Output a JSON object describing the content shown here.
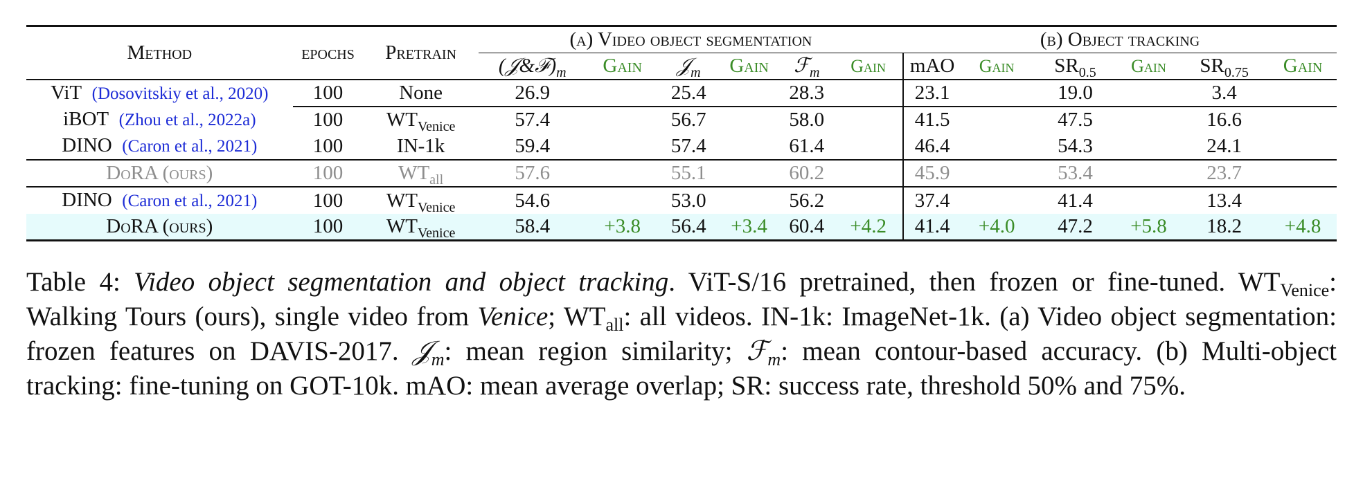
{
  "table": {
    "headers": {
      "method": "Method",
      "epochs": "epochs",
      "pretrain": "Pretrain",
      "group_a": "(a) Video object segmentation",
      "group_b": "(b) Object tracking",
      "jf": "(𝒥&ℱ)",
      "jf_sub": "m",
      "gain": "Gain",
      "j": "𝒥",
      "j_sub": "m",
      "f": "ℱ",
      "f_sub": "m",
      "mao": "mAO",
      "sr50": "SR",
      "sr50_sub": "0.5",
      "sr75": "SR",
      "sr75_sub": "0.75"
    },
    "rows": [
      {
        "method": "ViT",
        "cite_open": "(",
        "cite_author": "Dosovitskiy et al.",
        "cite_sep": ", ",
        "cite_year": "2020",
        "cite_close": ")",
        "epochs": "100",
        "pretrain": "None",
        "pretrain_sub": "",
        "jf": "26.9",
        "jf_gain": "",
        "j": "25.4",
        "j_gain": "",
        "f": "28.3",
        "f_gain": "",
        "mao": "23.1",
        "mao_gain": "",
        "sr50": "19.0",
        "sr50_gain": "",
        "sr75": "3.4",
        "sr75_gain": ""
      },
      {
        "method": "iBOT",
        "cite_open": "(",
        "cite_author": "Zhou et al.",
        "cite_sep": ", ",
        "cite_year": "2022a",
        "cite_close": ")",
        "epochs": "100",
        "pretrain": "WT",
        "pretrain_sub": "Venice",
        "jf": "57.4",
        "jf_gain": "",
        "j": "56.7",
        "j_gain": "",
        "f": "58.0",
        "f_gain": "",
        "mao": "41.5",
        "mao_gain": "",
        "sr50": "47.5",
        "sr50_gain": "",
        "sr75": "16.6",
        "sr75_gain": ""
      },
      {
        "method": "DINO",
        "cite_open": "(",
        "cite_author": "Caron et al.",
        "cite_sep": ", ",
        "cite_year": "2021",
        "cite_close": ")",
        "epochs": "100",
        "pretrain": "IN-1k",
        "pretrain_sub": "",
        "jf": "59.4",
        "jf_gain": "",
        "j": "57.4",
        "j_gain": "",
        "f": "61.4",
        "f_gain": "",
        "mao": "46.4",
        "mao_gain": "",
        "sr50": "54.3",
        "sr50_gain": "",
        "sr75": "24.1",
        "sr75_gain": ""
      },
      {
        "method": "DoRA (ours)",
        "cite_open": "",
        "cite_author": "",
        "cite_sep": "",
        "cite_year": "",
        "cite_close": "",
        "epochs": "100",
        "pretrain": "WT",
        "pretrain_sub": "all",
        "jf": "57.6",
        "jf_gain": "",
        "j": "55.1",
        "j_gain": "",
        "f": "60.2",
        "f_gain": "",
        "mao": "45.9",
        "mao_gain": "",
        "sr50": "53.4",
        "sr50_gain": "",
        "sr75": "23.7",
        "sr75_gain": ""
      },
      {
        "method": "DINO",
        "cite_open": "(",
        "cite_author": "Caron et al.",
        "cite_sep": ", ",
        "cite_year": "2021",
        "cite_close": ")",
        "epochs": "100",
        "pretrain": "WT",
        "pretrain_sub": "Venice",
        "jf": "54.6",
        "jf_gain": "",
        "j": "53.0",
        "j_gain": "",
        "f": "56.2",
        "f_gain": "",
        "mao": "37.4",
        "mao_gain": "",
        "sr50": "41.4",
        "sr50_gain": "",
        "sr75": "13.4",
        "sr75_gain": ""
      },
      {
        "method": "DoRA (ours)",
        "cite_open": "",
        "cite_author": "",
        "cite_sep": "",
        "cite_year": "",
        "cite_close": "",
        "epochs": "100",
        "pretrain": "WT",
        "pretrain_sub": "Venice",
        "jf": "58.4",
        "jf_gain": "+3.8",
        "j": "56.4",
        "j_gain": "+3.4",
        "f": "60.4",
        "f_gain": "+4.2",
        "mao": "41.4",
        "mao_gain": "+4.0",
        "sr50": "47.2",
        "sr50_gain": "+5.8",
        "sr75": "18.2",
        "sr75_gain": "+4.8"
      }
    ]
  },
  "caption": {
    "label": "Table 4:",
    "title": "Video object segmentation and object tracking",
    "s1": ". ViT-S/16 pretrained, then frozen or fine-tuned. ",
    "wt": "WT",
    "wt_venice_sub": "Venice",
    "s2": ": Walking Tours (ours), single video from ",
    "venice": "Venice",
    "s3": "; ",
    "wt2": "WT",
    "wt_all_sub": "all",
    "s4": ": all videos. IN-1k: ImageNet-1k. (a) Video object segmentation: frozen features on DAVIS-2017. ",
    "jm": "𝒥",
    "jm_sub": "m",
    "s5": ": mean region similarity; ",
    "fm": "ℱ",
    "fm_sub": "m",
    "s6": ": mean contour-based accuracy. (b) Multi-object tracking: fine-tuning on GOT-10k. mAO: mean average overlap; SR: success rate, threshold 50% and 75%."
  }
}
